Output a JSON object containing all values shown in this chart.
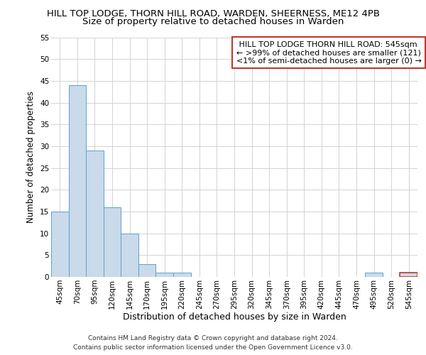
{
  "title": "HILL TOP LODGE, THORN HILL ROAD, WARDEN, SHEERNESS, ME12 4PB",
  "subtitle": "Size of property relative to detached houses in Warden",
  "xlabel": "Distribution of detached houses by size in Warden",
  "ylabel": "Number of detached properties",
  "categories": [
    "45sqm",
    "70sqm",
    "95sqm",
    "120sqm",
    "145sqm",
    "170sqm",
    "195sqm",
    "220sqm",
    "245sqm",
    "270sqm",
    "295sqm",
    "320sqm",
    "345sqm",
    "370sqm",
    "395sqm",
    "420sqm",
    "445sqm",
    "470sqm",
    "495sqm",
    "520sqm",
    "545sqm"
  ],
  "values": [
    15,
    44,
    29,
    16,
    10,
    3,
    1,
    1,
    0,
    0,
    0,
    0,
    0,
    0,
    0,
    0,
    0,
    0,
    1,
    0,
    1
  ],
  "bar_color": "#c9daea",
  "bar_edge_color": "#5ba3c9",
  "highlight_index": 20,
  "highlight_bar_color": "#c9daea",
  "highlight_bar_edge_color": "#c0392b",
  "ylim": [
    0,
    55
  ],
  "yticks": [
    0,
    5,
    10,
    15,
    20,
    25,
    30,
    35,
    40,
    45,
    50,
    55
  ],
  "annotation_text": " HILL TOP LODGE THORN HILL ROAD: 545sqm\n← >99% of detached houses are smaller (121)\n<1% of semi-detached houses are larger (0) →",
  "annotation_box_color": "#ffffff",
  "annotation_box_edge_color": "#c0392b",
  "footer_line1": "Contains HM Land Registry data © Crown copyright and database right 2024.",
  "footer_line2": "Contains public sector information licensed under the Open Government Licence v3.0.",
  "background_color": "#ffffff",
  "grid_color": "#cccccc",
  "title_fontsize": 9.5,
  "subtitle_fontsize": 9.5,
  "tick_fontsize": 7.5,
  "ylabel_fontsize": 8.5,
  "xlabel_fontsize": 9,
  "annotation_fontsize": 8,
  "footer_fontsize": 6.5
}
